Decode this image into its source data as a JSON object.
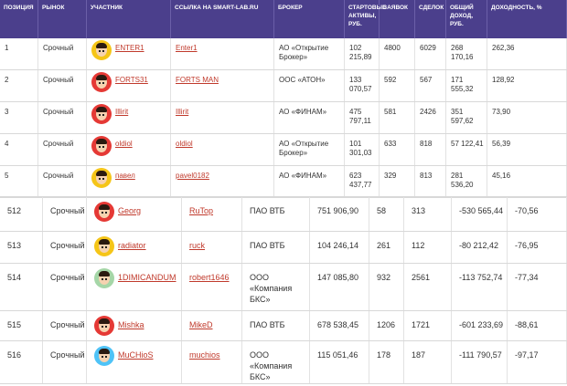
{
  "header": [
    "ПОЗИЦИЯ",
    "РЫНОК",
    "УЧАСТНИК",
    "ССЫЛКА НА SMART-LAB.RU",
    "БРОКЕР",
    "СТАРТОВЫЕ АКТИВЫ, РУБ.",
    "ЗАЯВОК",
    "СДЕЛОК",
    "ОБЩИЙ ДОХОД, РУБ.",
    "ДОХОДНОСТЬ, %"
  ],
  "top_rows": [
    {
      "pos": "1",
      "market": "Срочный",
      "user": "ENTER1",
      "link": "Enter1",
      "broker": "АО «Открытие Брокер»",
      "assets": "102 215,89",
      "orders": "4800",
      "deals": "6029",
      "income": "268 170,16",
      "yield": "262,36",
      "avatar": "#f5c518"
    },
    {
      "pos": "2",
      "market": "Срочный",
      "user": "FORTS31",
      "link": "FORTS MAN",
      "broker": "ООС «АТОН»",
      "assets": "133 070,57",
      "orders": "592",
      "deals": "567",
      "income": "171 555,32",
      "yield": "128,92",
      "avatar": "#e53935"
    },
    {
      "pos": "3",
      "market": "Срочный",
      "user": "Illirit",
      "link": "Illirit",
      "broker": "АО «ФИНАМ»",
      "assets": "475 797,11",
      "orders": "581",
      "deals": "2426",
      "income": "351 597,62",
      "yield": "73,90",
      "avatar": "#e53935"
    },
    {
      "pos": "4",
      "market": "Срочный",
      "user": "oldiol",
      "link": "oldiol",
      "broker": "АО «Открытие Брокер»",
      "assets": "101 301,03",
      "orders": "633",
      "deals": "818",
      "income": "57 122,41",
      "yield": "56,39",
      "avatar": "#e53935"
    },
    {
      "pos": "5",
      "market": "Срочный",
      "user": "павел",
      "link": "pavel0182",
      "broker": "АО «ФИНАМ»",
      "assets": "623 437,77",
      "orders": "329",
      "deals": "813",
      "income": "281 536,20",
      "yield": "45,16",
      "avatar": "#f5c518"
    }
  ],
  "bottom_rows": [
    {
      "pos": "512",
      "market": "Срочный",
      "user": "Georg",
      "link": "RuTop",
      "broker": "ПАО ВТБ",
      "assets": "751 906,90",
      "orders": "58",
      "deals": "313",
      "income": "-530 565,44",
      "yield": "-70,56",
      "avatar": "#e53935"
    },
    {
      "pos": "513",
      "market": "Срочный",
      "user": "radiator",
      "link": "ruck",
      "broker": "ПАО ВТБ",
      "assets": "104 246,14",
      "orders": "261",
      "deals": "112",
      "income": "-80 212,42",
      "yield": "-76,95",
      "avatar": "#f5c518"
    },
    {
      "pos": "514",
      "market": "Срочный",
      "user": "1DIMICANDUM",
      "link": "robert1646",
      "broker": "ООО «Компания БКС»",
      "assets": "147 085,80",
      "orders": "932",
      "deals": "2561",
      "income": "-113 752,74",
      "yield": "-77,34",
      "avatar": "#a5d6a7"
    },
    {
      "pos": "515",
      "market": "Срочный",
      "user": "Mishka",
      "link": "MikeD",
      "broker": "ПАО ВТБ",
      "assets": "678 538,45",
      "orders": "1206",
      "deals": "1721",
      "income": "-601 233,69",
      "yield": "-88,61",
      "avatar": "#e53935"
    },
    {
      "pos": "516",
      "market": "Срочный",
      "user": "MuCHioS",
      "link": "muchios",
      "broker": "ООО «Компания БКС»",
      "assets": "115 051,46",
      "orders": "178",
      "deals": "187",
      "income": "-111 790,57",
      "yield": "-97,17",
      "avatar": "#4fc3f7"
    }
  ]
}
